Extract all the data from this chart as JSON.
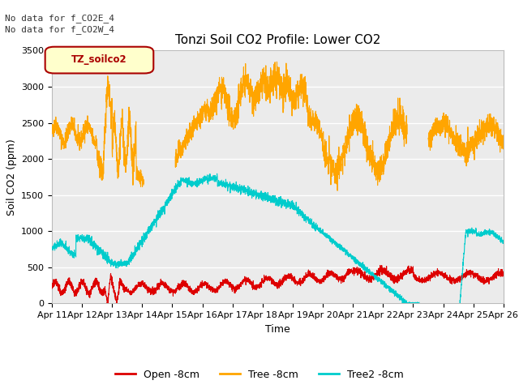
{
  "title": "Tonzi Soil CO2 Profile: Lower CO2",
  "ylabel": "Soil CO2 (ppm)",
  "xlabel": "Time",
  "annotation_line1": "No data for f_CO2E_4",
  "annotation_line2": "No data for f_CO2W_4",
  "legend_label": "TZ_soilco2",
  "series_labels": [
    "Open -8cm",
    "Tree -8cm",
    "Tree2 -8cm"
  ],
  "series_colors": [
    "#dd0000",
    "#ffa500",
    "#00cccc"
  ],
  "ylim": [
    0,
    3500
  ],
  "xlim": [
    0,
    15
  ],
  "xtick_labels": [
    "Apr 11",
    "Apr 12",
    "Apr 13",
    "Apr 14",
    "Apr 15",
    "Apr 16",
    "Apr 17",
    "Apr 18",
    "Apr 19",
    "Apr 20",
    "Apr 21",
    "Apr 22",
    "Apr 23",
    "Apr 24",
    "Apr 25",
    "Apr 26"
  ],
  "ytick_vals": [
    0,
    500,
    1000,
    1500,
    2000,
    2500,
    3000,
    3500
  ],
  "plot_bg_color": "#ebebeb",
  "grid_color": "#ffffff",
  "fig_bg_color": "#ffffff",
  "box_facecolor": "#ffffcc",
  "box_edgecolor": "#aa0000",
  "annotation_color": "#333333",
  "title_fontsize": 11,
  "label_fontsize": 9,
  "tick_fontsize": 8,
  "legend_fontsize": 9
}
